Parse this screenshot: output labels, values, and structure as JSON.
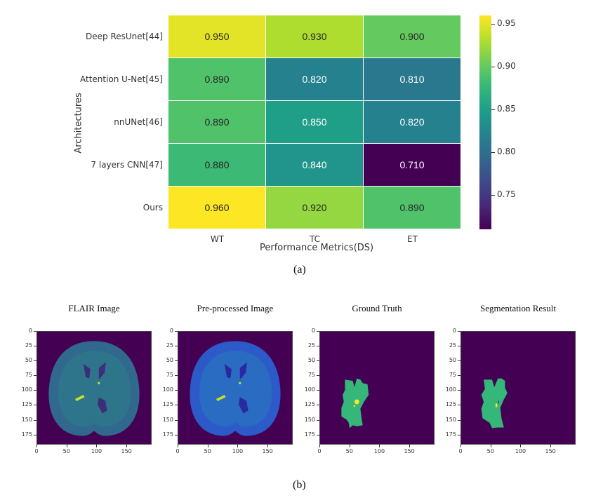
{
  "chart_data": [
    {
      "type": "heatmap",
      "title": "",
      "xlabel": "Performance Metrics(DS)",
      "ylabel": "Architectures",
      "columns": [
        "WT",
        "TC",
        "ET"
      ],
      "rows": [
        "Deep ResUnet[44]",
        "Attention U-Net[45]",
        "nnUNet[46]",
        "7 layers CNN[47]",
        "Ours"
      ],
      "values": [
        [
          0.95,
          0.93,
          0.9
        ],
        [
          0.89,
          0.82,
          0.81
        ],
        [
          0.89,
          0.85,
          0.82
        ],
        [
          0.88,
          0.84,
          0.71
        ],
        [
          0.96,
          0.92,
          0.89
        ]
      ],
      "labels": [
        [
          "0.950",
          "0.930",
          "0.900"
        ],
        [
          "0.890",
          "0.820",
          "0.810"
        ],
        [
          "0.890",
          "0.850",
          "0.820"
        ],
        [
          "0.880",
          "0.840",
          "0.710"
        ],
        [
          "0.960",
          "0.920",
          "0.890"
        ]
      ],
      "colormap": "viridis",
      "colorbar": {
        "range": [
          0.71,
          0.96
        ],
        "ticks": [
          0.95,
          0.9,
          0.85,
          0.8,
          0.75
        ],
        "tick_labels": [
          "0.95",
          "0.90",
          "0.85",
          "0.80",
          "0.75"
        ]
      },
      "caption": "(a)"
    },
    {
      "type": "image-panels",
      "panels": [
        {
          "title": "FLAIR Image"
        },
        {
          "title": "Pre-processed Image"
        },
        {
          "title": "Ground Truth"
        },
        {
          "title": "Segmentation Result"
        }
      ],
      "xticks": [
        "0",
        "50",
        "100",
        "150"
      ],
      "yticks": [
        "0",
        "25",
        "50",
        "75",
        "100",
        "125",
        "150",
        "175"
      ],
      "extent": [
        0,
        192
      ],
      "caption": "(b)"
    }
  ]
}
